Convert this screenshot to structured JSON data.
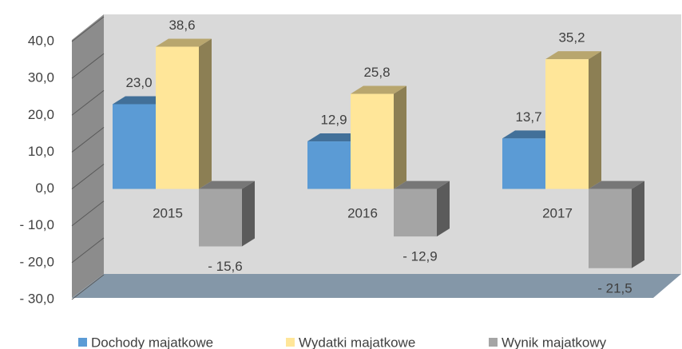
{
  "chart_data": {
    "type": "bar3d",
    "categories": [
      "2015",
      "2016",
      "2017"
    ],
    "series": [
      {
        "name": "Dochody majatkowe",
        "color": "#5b9bd5",
        "values": [
          23.0,
          12.9,
          13.7
        ],
        "value_labels": [
          "23,0",
          "12,9",
          "13,7"
        ]
      },
      {
        "name": "Wydatki majatkowe",
        "color": "#ffe699",
        "values": [
          38.6,
          25.8,
          35.2
        ],
        "value_labels": [
          "38,6",
          "25,8",
          "35,2"
        ]
      },
      {
        "name": "Wynik majatkowy",
        "color": "#a5a5a5",
        "values": [
          -15.6,
          -12.9,
          -21.5
        ],
        "value_labels": [
          "- 15,6",
          "- 12,9",
          "- 21,5"
        ]
      }
    ],
    "ylim": [
      -30,
      40
    ],
    "yticks": [
      {
        "value": 40,
        "label": "40,0"
      },
      {
        "value": 30,
        "label": "30,0"
      },
      {
        "value": 20,
        "label": "20,0"
      },
      {
        "value": 10,
        "label": "10,0"
      },
      {
        "value": 0,
        "label": "0,0"
      },
      {
        "value": -10,
        "label": "- 10,0"
      },
      {
        "value": -20,
        "label": "- 20,0"
      },
      {
        "value": -30,
        "label": "- 30,0"
      }
    ],
    "grid": true,
    "legend": "bottom"
  }
}
